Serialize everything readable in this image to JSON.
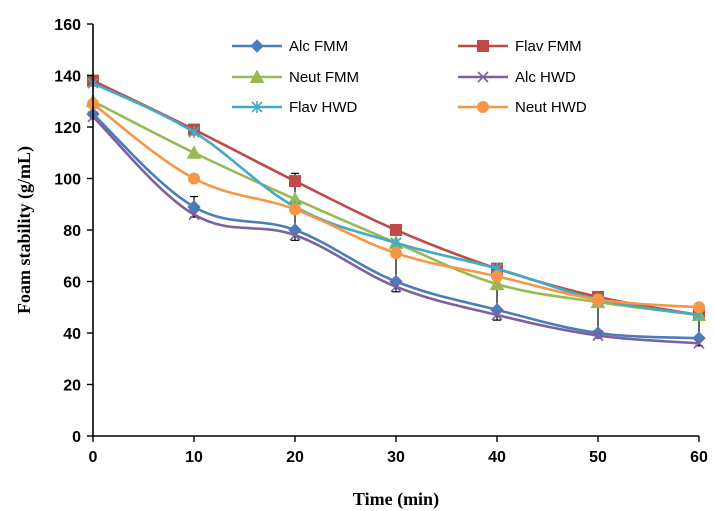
{
  "chart_data": {
    "type": "line",
    "title": "",
    "xlabel": "Time (min)",
    "ylabel": "Foam stability (g/mL)",
    "x": [
      0,
      10,
      20,
      30,
      40,
      50,
      60
    ],
    "xticks": [
      "0",
      "10",
      "20",
      "30",
      "40",
      "50",
      "60"
    ],
    "yticks": [
      "0",
      "20",
      "40",
      "60",
      "80",
      "100",
      "120",
      "140",
      "160"
    ],
    "xlim": [
      0,
      60
    ],
    "ylim": [
      0,
      160
    ],
    "grid": false,
    "legend_position": "top-right",
    "series": [
      {
        "name": "Alc FMM",
        "color": "#4a7ebb",
        "marker": "diamond",
        "values": [
          125,
          89,
          80,
          60,
          49,
          40,
          38
        ]
      },
      {
        "name": "Flav FMM",
        "color": "#be4b48",
        "marker": "square",
        "values": [
          138,
          119,
          99,
          80,
          65,
          54,
          47
        ]
      },
      {
        "name": "Neut FMM",
        "color": "#98b954",
        "marker": "triangle",
        "values": [
          130,
          110,
          92,
          75,
          59,
          52,
          47
        ]
      },
      {
        "name": "Alc HWD",
        "color": "#7d60a0",
        "marker": "x",
        "values": [
          124,
          86,
          78,
          58,
          47,
          39,
          36
        ]
      },
      {
        "name": "Flav HWD",
        "color": "#46aac5",
        "marker": "asterisk",
        "values": [
          137,
          118,
          89,
          75,
          65,
          53,
          47
        ]
      },
      {
        "name": "Neut HWD",
        "color": "#f79646",
        "marker": "circle",
        "values": [
          129,
          100,
          88,
          71,
          62,
          53,
          50
        ]
      }
    ],
    "error_bars": [
      {
        "x": 10,
        "low": 85,
        "high": 93
      },
      {
        "x": 20,
        "low": 76,
        "high": 102
      },
      {
        "x": 30,
        "low": 56,
        "high": 82
      },
      {
        "x": 40,
        "low": 45,
        "high": 67
      },
      {
        "x": 50,
        "low": 38,
        "high": 56
      },
      {
        "x": 60,
        "low": 35,
        "high": 49
      }
    ]
  }
}
